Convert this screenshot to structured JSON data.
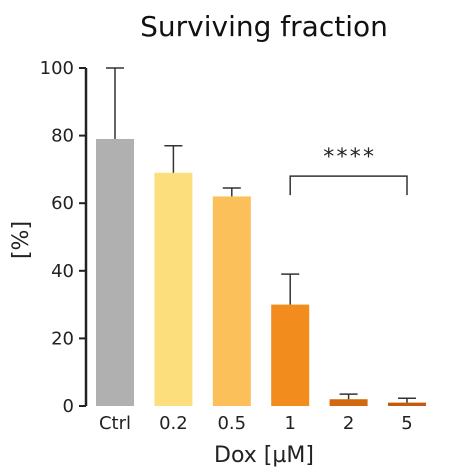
{
  "chart_data": {
    "type": "bar",
    "title": "Surviving fraction",
    "xlabel": "Dox [µM]",
    "ylabel": "[%]",
    "ylim": [
      0,
      100
    ],
    "yticks": [
      "0",
      "20",
      "40",
      "60",
      "80",
      "100"
    ],
    "categories": [
      "Ctrl",
      "0.2",
      "0.5",
      "1",
      "2",
      "5"
    ],
    "values": [
      79,
      69,
      62,
      30,
      2,
      1
    ],
    "errors": [
      21,
      8,
      2.5,
      9,
      1.5,
      1.3
    ],
    "colors": [
      "#b0b0b0",
      "#fcdf7c",
      "#fbc05a",
      "#f28c1d",
      "#d2690f",
      "#c45a0c"
    ],
    "grid": false,
    "annotations": [
      {
        "text": "****",
        "from_category": "1",
        "to_category": "5",
        "y": 68
      }
    ]
  }
}
